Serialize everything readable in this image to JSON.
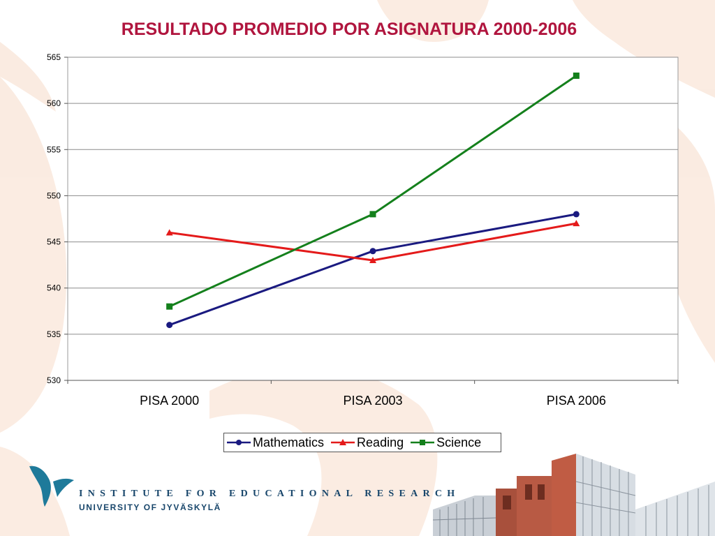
{
  "slide": {
    "title": "RESULTADO PROMEDIO POR ASIGNATURA 2000-2006",
    "institute_name": "INSTITUTE FOR EDUCATIONAL RESEARCH",
    "university_name": "UNIVERSITY OF JYVÄSKYLÄ"
  },
  "colors": {
    "title": "#b0153e",
    "mathematics": "#1a1a80",
    "reading": "#e41a1a",
    "science": "#14801c",
    "logo": "#1e7a9a",
    "institute_text": "#18466b",
    "gridline": "#8c8c8c"
  },
  "chart_data": {
    "type": "line",
    "categories": [
      "PISA 2000",
      "PISA 2003",
      "PISA 2006"
    ],
    "ylim": [
      530,
      565
    ],
    "yticks": [
      "530",
      "535",
      "540",
      "545",
      "550",
      "555",
      "560",
      "565"
    ],
    "grid": true,
    "legend_position": "bottom",
    "series": [
      {
        "name": "Mathematics",
        "values": [
          536,
          544,
          548
        ],
        "marker": "circle",
        "color": "#1a1a80"
      },
      {
        "name": "Reading",
        "values": [
          546,
          543,
          547
        ],
        "marker": "triangle",
        "color": "#e41a1a"
      },
      {
        "name": "Science",
        "values": [
          538,
          548,
          563
        ],
        "marker": "square",
        "color": "#14801c"
      }
    ]
  }
}
